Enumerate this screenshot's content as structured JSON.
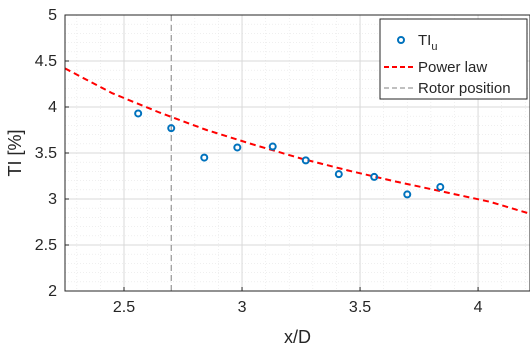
{
  "chart_data": {
    "type": "scatter",
    "title": "",
    "xlabel": "x/D",
    "ylabel": "TI [%]",
    "xlim": [
      2.25,
      4.22
    ],
    "ylim": [
      2,
      5
    ],
    "xticks": [
      2.5,
      3,
      3.5,
      4
    ],
    "xtick_labels": [
      "2.5",
      "3",
      "3.5",
      "4"
    ],
    "yticks": [
      2,
      2.5,
      3,
      3.5,
      4,
      4.5,
      5
    ],
    "ytick_labels": [
      "2",
      "2.5",
      "3",
      "3.5",
      "4",
      "4.5",
      "5"
    ],
    "grid": true,
    "minor_grid": true,
    "legend_position": "top-right",
    "series": [
      {
        "name": "TI_u",
        "kind": "scatter",
        "color": "#0072BD",
        "x": [
          2.56,
          2.7,
          2.84,
          2.98,
          3.13,
          3.27,
          3.41,
          3.56,
          3.7,
          3.84
        ],
        "y": [
          3.93,
          3.77,
          3.45,
          3.56,
          3.57,
          3.42,
          3.27,
          3.24,
          3.05,
          3.13
        ]
      },
      {
        "name": "Power law",
        "kind": "line",
        "style": "dashed",
        "color": "#FF0000",
        "x": [
          2.25,
          2.45,
          2.65,
          2.85,
          3.05,
          3.25,
          3.45,
          3.65,
          3.85,
          4.05,
          4.22
        ],
        "y": [
          4.42,
          4.15,
          3.94,
          3.75,
          3.59,
          3.44,
          3.31,
          3.19,
          3.08,
          2.97,
          2.84
        ]
      },
      {
        "name": "Rotor position",
        "kind": "vline",
        "style": "dashed",
        "color": "#808080",
        "x": 2.7
      }
    ],
    "legend": {
      "entries": [
        {
          "label_main": "TI",
          "label_sub": "u",
          "kind": "marker",
          "color": "#0072BD"
        },
        {
          "label_main": "Power law",
          "label_sub": "",
          "kind": "line",
          "color": "#FF0000"
        },
        {
          "label_main": "Rotor position",
          "label_sub": "",
          "kind": "line",
          "color": "#808080"
        }
      ]
    }
  }
}
